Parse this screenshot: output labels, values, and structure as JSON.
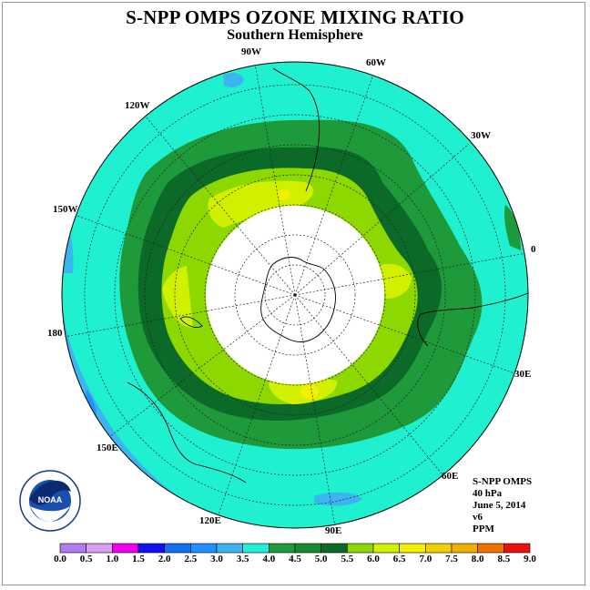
{
  "title": "S-NPP OMPS OZONE MIXING RATIO",
  "subtitle": "Southern Hemisphere",
  "longitude_labels": [
    "90W",
    "60W",
    "30W",
    "0",
    "30E",
    "60E",
    "90E",
    "120E",
    "150E",
    "180",
    "150W",
    "120W"
  ],
  "info": {
    "instrument": "S-NPP OMPS",
    "pressure": "40 hPa",
    "date": "June 5, 2014",
    "version": "v6",
    "units": "PPM"
  },
  "colorbar": {
    "ticks": [
      "0.0",
      "0.5",
      "1.0",
      "1.5",
      "2.0",
      "2.5",
      "3.0",
      "3.5",
      "4.0",
      "4.5",
      "5.0",
      "5.5",
      "6.0",
      "6.5",
      "7.0",
      "7.5",
      "8.0",
      "8.5",
      "9.0"
    ],
    "colors": [
      "#b07cf0",
      "#d8a0f0",
      "#ee00ee",
      "#1010f0",
      "#1070f0",
      "#1e90ff",
      "#3cb4f0",
      "#20f0d8",
      "#1f9a3a",
      "#168a32",
      "#0c6a28",
      "#8cd800",
      "#d0f000",
      "#f0f000",
      "#f0d000",
      "#f0b000",
      "#f07000",
      "#e81010",
      "#8c5a40"
    ]
  },
  "logo": {
    "text": "NOAA"
  }
}
